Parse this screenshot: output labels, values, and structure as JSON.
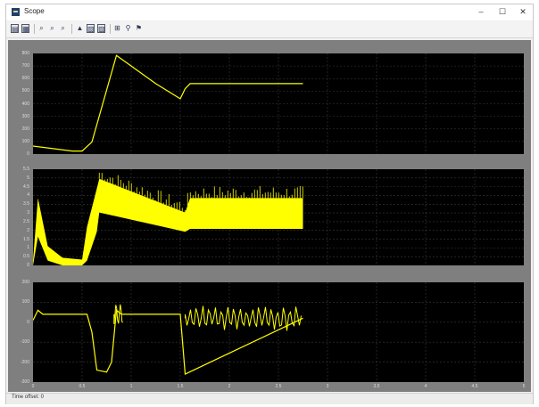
{
  "window": {
    "title": "Scope"
  },
  "controls": {
    "minimize": "–",
    "maximize": "☐",
    "close": "✕"
  },
  "toolbar": {
    "buttons": [
      {
        "name": "print-icon",
        "glyph": "▤"
      },
      {
        "name": "parameters-icon",
        "glyph": "▦"
      },
      {
        "name": "zoom-in-icon",
        "glyph": "⌕"
      },
      {
        "name": "zoom-x-icon",
        "glyph": "⌕"
      },
      {
        "name": "zoom-y-icon",
        "glyph": "⌕"
      },
      {
        "name": "autoscale-icon",
        "glyph": "▲"
      },
      {
        "name": "save-axes-icon",
        "glyph": "▧"
      },
      {
        "name": "restore-axes-icon",
        "glyph": "▨"
      },
      {
        "name": "floating-scope-icon",
        "glyph": "⊞"
      },
      {
        "name": "lock-axes-icon",
        "glyph": "⚲"
      },
      {
        "name": "signal-selection-icon",
        "glyph": "⚑"
      }
    ]
  },
  "status": {
    "text": "Time offset:   0"
  },
  "chart_data": [
    {
      "type": "line",
      "color": "#ffff00",
      "xlim": [
        0,
        1
      ],
      "ylim": [
        0,
        1
      ],
      "yticks": [
        "0",
        "100",
        "200",
        "300",
        "400",
        "500",
        "600",
        "700",
        "800"
      ],
      "x": [
        0,
        0.08,
        0.1,
        0.12,
        0.17,
        0.25,
        0.3,
        0.31,
        0.32,
        0.55
      ],
      "y": [
        0.08,
        0.03,
        0.03,
        0.12,
        0.98,
        0.7,
        0.55,
        0.65,
        0.7,
        0.7
      ]
    },
    {
      "type": "area",
      "color": "#ffff00",
      "xlim": [
        0,
        1
      ],
      "ylim": [
        0,
        1
      ],
      "yticks": [
        "0",
        "0.5",
        "1",
        "1.5",
        "2",
        "2.5",
        "3",
        "3.5",
        "4",
        "4.5",
        "5",
        "5.5"
      ],
      "x": [
        0,
        0.01,
        0.03,
        0.06,
        0.1,
        0.11,
        0.13,
        0.135,
        0.31,
        0.32,
        0.55
      ],
      "upper": [
        0.05,
        0.7,
        0.2,
        0.08,
        0.06,
        0.4,
        0.8,
        0.9,
        0.55,
        0.7,
        0.7
      ],
      "lower": [
        0.0,
        0.3,
        0.05,
        0.0,
        0.0,
        0.05,
        0.35,
        0.55,
        0.35,
        0.38,
        0.38
      ]
    },
    {
      "type": "line",
      "color": "#ffff00",
      "xlim": [
        0,
        1
      ],
      "ylim": [
        -300,
        200
      ],
      "yticks": [
        "-300",
        "-200",
        "-100",
        "0",
        "100",
        "200"
      ],
      "xticks": [
        "0",
        "0.5",
        "1",
        "1.5",
        "2",
        "2.5",
        "3",
        "3.5",
        "4",
        "4.5",
        "5"
      ],
      "x": [
        0,
        0.01,
        0.02,
        0.11,
        0.12,
        0.13,
        0.15,
        0.16,
        0.17,
        0.18,
        0.3,
        0.31,
        0.55
      ],
      "y": [
        10,
        60,
        40,
        40,
        -50,
        -240,
        -250,
        -200,
        60,
        40,
        40,
        -260,
        20
      ]
    }
  ]
}
